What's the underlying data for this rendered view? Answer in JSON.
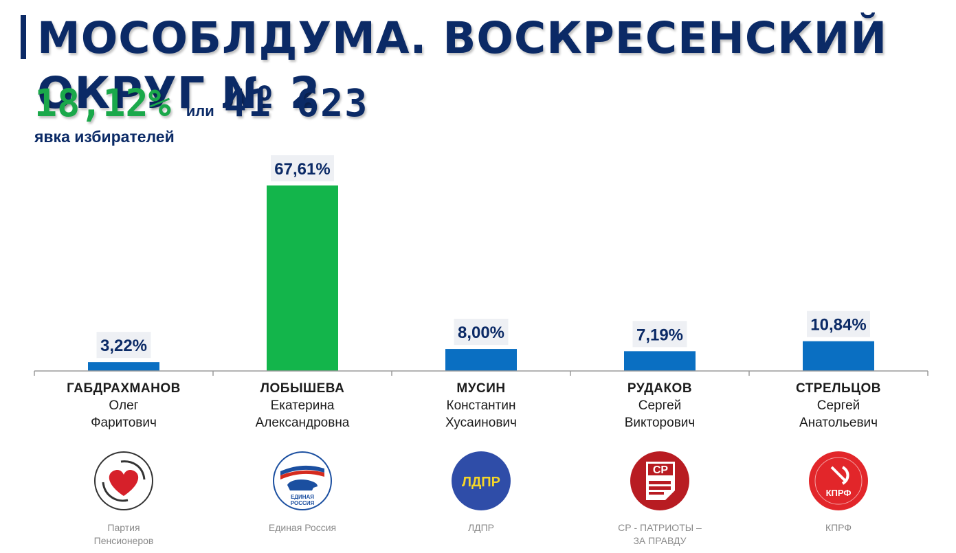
{
  "header": {
    "title": "МОСОБЛДУМА. ВОСКРЕСЕНСКИЙ ОКРУГ № 2"
  },
  "turnout": {
    "percent": "18,12%",
    "or_text": "или",
    "count": "41 623",
    "label": "явка избирателей"
  },
  "chart_data": {
    "type": "bar",
    "categories": [
      "ГАБДРАХМАНОВ Олег Фаритович",
      "ЛОБЫШЕВА Екатерина Александровна",
      "МУСИН Константин Хусаинович",
      "РУДАКОВ Сергей Викторович",
      "СТРЕЛЬЦОВ Сергей Анатольевич"
    ],
    "values": [
      3.22,
      67.61,
      8.0,
      7.19,
      10.84
    ],
    "data_labels": [
      "3,22%",
      "67,61%",
      "8,00%",
      "7,19%",
      "10,84%"
    ],
    "colors": [
      "#0a6fc2",
      "#13b54b",
      "#0a6fc2",
      "#0a6fc2",
      "#0a6fc2"
    ],
    "ylim": [
      0,
      67.61
    ],
    "grid": false,
    "title": "",
    "xlabel": "",
    "ylabel": ""
  },
  "candidates": [
    {
      "surname": "ГАБДРАХМАНОВ",
      "first": "Олег",
      "patronymic": "Фаритович",
      "party": "Партия Пенсионеров",
      "logo_icon": "heart-hands-icon"
    },
    {
      "surname": "ЛОБЫШЕВА",
      "first": "Екатерина",
      "patronymic": "Александровна",
      "party": "Единая Россия",
      "logo_icon": "bear-flag-icon",
      "logo_text": "ЕДИНАЯ РОССИЯ"
    },
    {
      "surname": "МУСИН",
      "first": "Константин",
      "patronymic": "Хусаинович",
      "party": "ЛДПР",
      "logo_icon": "ldpr-icon",
      "logo_text": "ЛДПР"
    },
    {
      "surname": "РУДАКОВ",
      "first": "Сергей",
      "patronymic": "Викторович",
      "party": "СР - ПАТРИОТЫ – ЗА ПРАВДУ",
      "logo_icon": "sr-icon",
      "logo_text": "СР"
    },
    {
      "surname": "СТРЕЛЬЦОВ",
      "first": "Сергей",
      "patronymic": "Анатольевич",
      "party": "КПРФ",
      "logo_icon": "hammer-sickle-icon",
      "logo_text": "КПРФ"
    }
  ],
  "colors": {
    "title": "#0b2a66",
    "turnout_green": "#1aa84a",
    "bar_blue": "#0a6fc2",
    "bar_green": "#13b54b",
    "label_bg": "#eef0f4"
  }
}
